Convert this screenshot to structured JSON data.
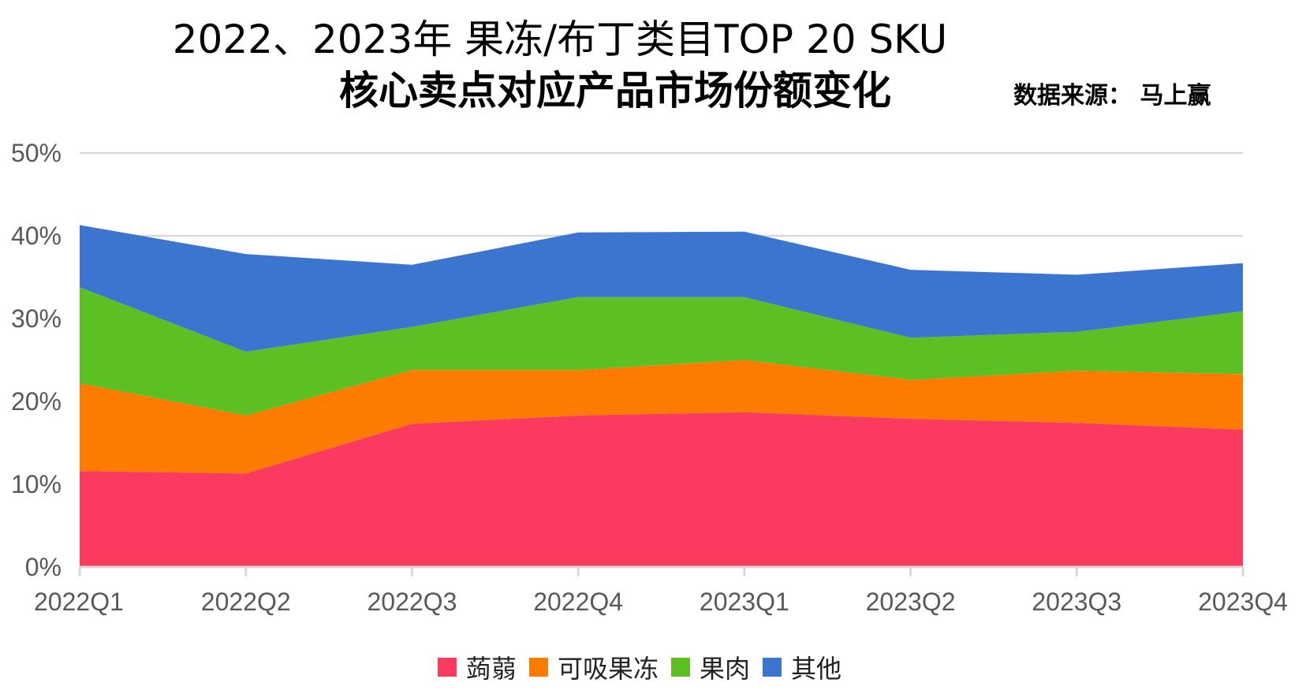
{
  "chart_data": {
    "type": "area",
    "stacked": true,
    "title_line1": "2022、2023年 果冻/布丁类目TOP 20 SKU",
    "title_line2": "核心卖点对应产品市场份额变化",
    "source": "数据来源： 马上赢",
    "categories": [
      "2022Q1",
      "2022Q2",
      "2022Q3",
      "2022Q4",
      "2023Q1",
      "2023Q2",
      "2023Q3",
      "2023Q4"
    ],
    "y_ticks": [
      "0%",
      "10%",
      "20%",
      "30%",
      "40%",
      "50%"
    ],
    "ylim": [
      0,
      50
    ],
    "grid": true,
    "legend_position": "bottom",
    "series": [
      {
        "name": "蒟蒻",
        "color": "#fa3a5e",
        "values": [
          11.6,
          11.3,
          17.3,
          18.3,
          18.7,
          17.9,
          17.4,
          16.6
        ]
      },
      {
        "name": "可吸果冻",
        "color": "#fd7b00",
        "values": [
          10.6,
          7.0,
          6.5,
          5.5,
          6.3,
          4.7,
          6.3,
          6.7
        ]
      },
      {
        "name": "果肉",
        "color": "#5cbf23",
        "values": [
          11.6,
          7.7,
          5.2,
          8.8,
          7.6,
          5.1,
          4.7,
          7.6
        ]
      },
      {
        "name": "其他",
        "color": "#3b75cf",
        "values": [
          7.5,
          11.8,
          7.5,
          7.8,
          7.9,
          8.2,
          6.9,
          5.8
        ]
      }
    ]
  }
}
